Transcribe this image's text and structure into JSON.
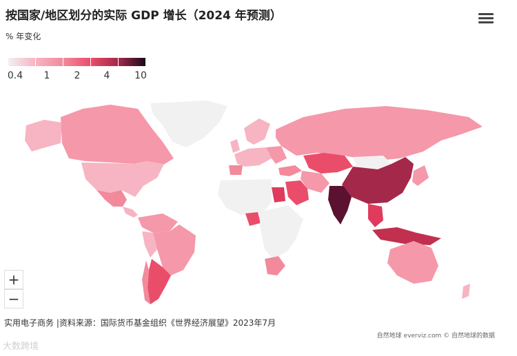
{
  "header": {
    "title": "按国家/地区划分的实际 GDP 增长（2024 年预测）",
    "subtitle": "% 年变化",
    "menu_icon": "hamburger-menu-icon"
  },
  "chart_data": {
    "type": "choropleth",
    "title": "按国家/地区划分的实际 GDP 增长（2024 年预测）",
    "subtitle": "% 年变化",
    "legend": {
      "type": "color-scale",
      "tick_labels": [
        "0.4",
        "1",
        "2",
        "4",
        "10"
      ],
      "tick_values": [
        0.4,
        1,
        2,
        4,
        10
      ],
      "colors": [
        "#f3eef2",
        "#f7b4c2",
        "#f28a9c",
        "#ea4d6a",
        "#a3284a",
        "#1a0a1e"
      ]
    },
    "no_data_color": "#f1f1f1"
  },
  "zoom": {
    "in_label": "+",
    "out_label": "−"
  },
  "footer": {
    "source": "实用电子商务 |资料来源：国际货币基金组织《世界经济展望》2023年7月",
    "credit": "自然地球 everviz.com © 自然地球的数据",
    "watermark": "大数跨境"
  }
}
